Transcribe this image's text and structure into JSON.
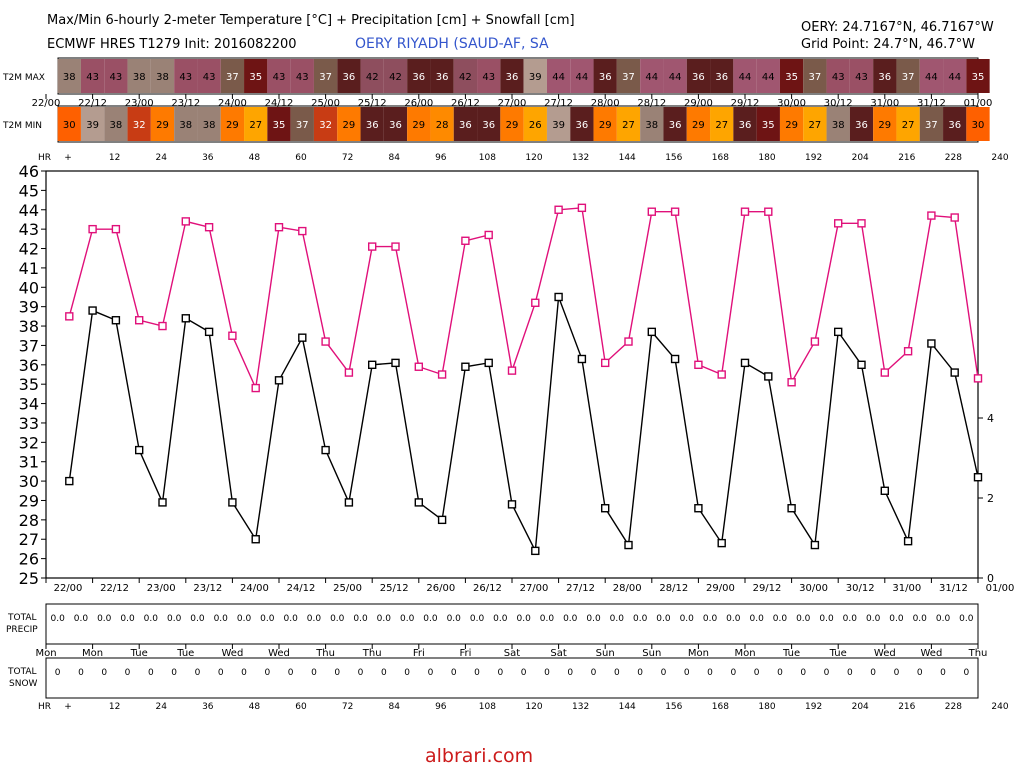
{
  "header": {
    "title": "Max/Min 6-hourly 2-meter Temperature [°C] + Precipitation [cm] + Snowfall [cm]",
    "model": "ECMWF HRES T1279 Init: 2016082200",
    "station": "OERY RIYADH (SAUD-AF, SA",
    "coords": "OERY: 24.7167°N, 46.7167°W",
    "gridpoint": "Grid Point: 24.7°N, 46.7°W"
  },
  "watermark": "albrari.com",
  "rows": {
    "max_label": "T2M MAX",
    "min_label": "T2M MIN",
    "hr_label": "HR",
    "precip_label_1": "TOTAL",
    "precip_label_2": "PRECIP",
    "snow_label_1": "TOTAL",
    "snow_label_2": "SNOW"
  },
  "colors": {
    "max_line": "#e0107a",
    "min_line": "#000000",
    "c26": "#fea500",
    "c27": "#fea500",
    "c28": "#fe8a00",
    "c29": "#fe7a00",
    "c30": "#fe6000",
    "c32": "#c83c14",
    "c35": "#6e1414",
    "c36": "#5a1e1e",
    "c37": "#7a5a4a",
    "c38": "#9a8276",
    "c39": "#b49c90",
    "c42": "#8e4e5e",
    "c43": "#9a5065",
    "c44": "#a05670"
  },
  "chart_data": {
    "type": "line",
    "title": "Max/Min 6-hourly 2-meter Temperature [°C] + Precipitation [cm] + Snowfall [cm]",
    "x_hours": [
      6,
      12,
      18,
      24,
      30,
      36,
      42,
      48,
      54,
      60,
      66,
      72,
      78,
      84,
      90,
      96,
      102,
      108,
      114,
      120,
      126,
      132,
      138,
      144,
      150,
      156,
      162,
      168,
      174,
      180,
      186,
      192,
      198,
      204,
      210,
      216,
      222,
      228,
      234,
      240
    ],
    "hr_ticks": [
      "+",
      "12",
      "24",
      "36",
      "48",
      "60",
      "72",
      "84",
      "96",
      "108",
      "120",
      "132",
      "144",
      "156",
      "168",
      "180",
      "192",
      "204",
      "216",
      "228",
      "240"
    ],
    "date_ticks": [
      "22/00",
      "22/12",
      "23/00",
      "23/12",
      "24/00",
      "24/12",
      "25/00",
      "25/12",
      "26/00",
      "26/12",
      "27/00",
      "27/12",
      "28/00",
      "28/12",
      "29/00",
      "29/12",
      "30/00",
      "30/12",
      "31/00",
      "31/12",
      "01/00"
    ],
    "day_ticks": [
      "Mon",
      "Mon",
      "Tue",
      "Tue",
      "Wed",
      "Wed",
      "Thu",
      "Thu",
      "Fri",
      "Fri",
      "Sat",
      "Sat",
      "Sun",
      "Sun",
      "Mon",
      "Mon",
      "Tue",
      "Tue",
      "Wed",
      "Wed",
      "Thu"
    ],
    "ylim": [
      25,
      46
    ],
    "y_ticks": [
      25,
      26,
      27,
      28,
      29,
      30,
      31,
      32,
      33,
      34,
      35,
      36,
      37,
      38,
      39,
      40,
      41,
      42,
      43,
      44,
      45,
      46
    ],
    "y2_ticks": [
      "0",
      "2",
      "4"
    ],
    "series": [
      {
        "values": [
          38.5,
          43.0,
          43.0,
          38.3,
          38.0,
          43.4,
          43.1,
          37.5,
          34.8,
          43.1,
          42.9,
          37.2,
          35.6,
          42.1,
          42.1,
          35.9,
          35.5,
          42.4,
          42.7,
          35.7,
          39.2,
          44.0,
          44.1,
          36.1,
          37.2,
          43.9,
          43.9,
          36.0,
          35.5,
          43.9,
          43.9,
          35.1,
          37.2,
          43.3,
          43.3,
          35.6,
          36.7,
          43.7,
          43.6,
          35.3
        ]
      },
      {
        "values": [
          30.0,
          38.8,
          38.3,
          31.6,
          28.9,
          38.4,
          37.7,
          28.9,
          27.0,
          35.2,
          37.4,
          31.6,
          28.9,
          36.0,
          36.1,
          28.9,
          28.0,
          35.9,
          36.1,
          28.8,
          26.4,
          39.5,
          36.3,
          28.6,
          26.7,
          37.7,
          36.3,
          28.6,
          26.8,
          36.1,
          35.4,
          28.6,
          26.7,
          37.7,
          36.0,
          29.5,
          26.9,
          37.1,
          35.6,
          30.2
        ]
      }
    ],
    "t2m_max": [
      "38",
      "43",
      "43",
      "38",
      "38",
      "43",
      "43",
      "37",
      "35",
      "43",
      "43",
      "37",
      "36",
      "42",
      "42",
      "36",
      "36",
      "42",
      "43",
      "36",
      "39",
      "44",
      "44",
      "36",
      "37",
      "44",
      "44",
      "36",
      "36",
      "44",
      "44",
      "35",
      "37",
      "43",
      "43",
      "36",
      "37",
      "44",
      "44",
      "35"
    ],
    "t2m_min": [
      "30",
      "39",
      "38",
      "32",
      "29",
      "38",
      "38",
      "29",
      "27",
      "35",
      "37",
      "32",
      "29",
      "36",
      "36",
      "29",
      "28",
      "36",
      "36",
      "29",
      "26",
      "39",
      "36",
      "29",
      "27",
      "38",
      "36",
      "29",
      "27",
      "36",
      "35",
      "29",
      "27",
      "38",
      "36",
      "29",
      "27",
      "37",
      "36",
      "30"
    ],
    "total_precip": [
      "0.0",
      "0.0",
      "0.0",
      "0.0",
      "0.0",
      "0.0",
      "0.0",
      "0.0",
      "0.0",
      "0.0",
      "0.0",
      "0.0",
      "0.0",
      "0.0",
      "0.0",
      "0.0",
      "0.0",
      "0.0",
      "0.0",
      "0.0",
      "0.0",
      "0.0",
      "0.0",
      "0.0",
      "0.0",
      "0.0",
      "0.0",
      "0.0",
      "0.0",
      "0.0",
      "0.0",
      "0.0",
      "0.0",
      "0.0",
      "0.0",
      "0.0",
      "0.0",
      "0.0",
      "0.0",
      "0.0"
    ],
    "total_snow": [
      "0",
      "0",
      "0",
      "0",
      "0",
      "0",
      "0",
      "0",
      "0",
      "0",
      "0",
      "0",
      "0",
      "0",
      "0",
      "0",
      "0",
      "0",
      "0",
      "0",
      "0",
      "0",
      "0",
      "0",
      "0",
      "0",
      "0",
      "0",
      "0",
      "0",
      "0",
      "0",
      "0",
      "0",
      "0",
      "0",
      "0",
      "0",
      "0",
      "0"
    ]
  }
}
